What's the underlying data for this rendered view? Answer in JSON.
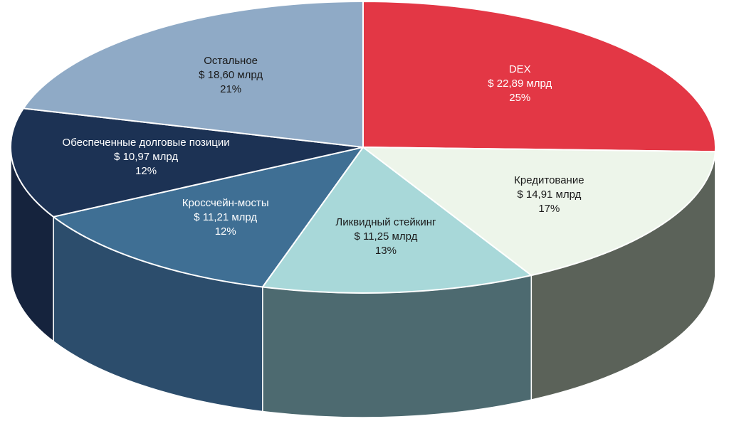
{
  "chart_data": {
    "type": "pie",
    "style": "3d-exploded-free",
    "unit": "$ млрд",
    "slices": [
      {
        "name": "DEX",
        "amount": "$ 22,89 млрд",
        "value": 22.89,
        "percent": "25%",
        "color": "#e33745",
        "side_color": "#7a2026",
        "text_color": "#ffffff"
      },
      {
        "name": "Кредитование",
        "amount": "$ 14,91 млрд",
        "value": 14.91,
        "percent": "17%",
        "color": "#edf5ea",
        "side_color": "#5b6259",
        "text_color": "#1a1a1a"
      },
      {
        "name": "Ликвидный стейкинг",
        "amount": "$ 11,25 млрд",
        "value": 11.25,
        "percent": "13%",
        "color": "#a8d8d9",
        "side_color": "#4d6a70",
        "text_color": "#1a1a1a"
      },
      {
        "name": "Кроссчейн-мосты",
        "amount": "$ 11,21 млрд",
        "value": 11.21,
        "percent": "12%",
        "color": "#3f6f94",
        "side_color": "#2c4d6c",
        "text_color": "#ffffff"
      },
      {
        "name": "Обеспеченные долговые позиции",
        "amount": "$ 10,97 млрд",
        "value": 10.97,
        "percent": "12%",
        "color": "#1c3254",
        "side_color": "#15233d",
        "text_color": "#ffffff"
      },
      {
        "name": "Остальное",
        "amount": "$ 18,60 млрд",
        "value": 18.6,
        "percent": "21%",
        "color": "#8faac6",
        "side_color": "#5f7890",
        "text_color": "#1a1a1a"
      }
    ]
  }
}
